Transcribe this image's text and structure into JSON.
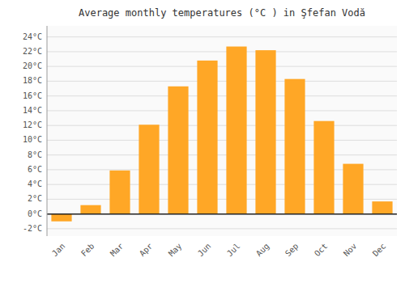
{
  "chart_data": {
    "type": "bar",
    "title": "Average monthly temperatures (°C ) in Şfefan Vodă",
    "categories": [
      "Jan",
      "Feb",
      "Mar",
      "Apr",
      "May",
      "Jun",
      "Jul",
      "Aug",
      "Sep",
      "Oct",
      "Nov",
      "Dec"
    ],
    "values": [
      -1.0,
      1.2,
      5.9,
      12.1,
      17.3,
      20.8,
      22.7,
      22.2,
      18.3,
      12.6,
      6.8,
      1.7
    ],
    "color": "#FFA726",
    "ylim": [
      -3,
      25.5
    ],
    "yticks": [
      {
        "value": -2,
        "label": "-2°C"
      },
      {
        "value": 0,
        "label": "0°C"
      },
      {
        "value": 2,
        "label": "2°C"
      },
      {
        "value": 4,
        "label": "4°C"
      },
      {
        "value": 6,
        "label": "6°C"
      },
      {
        "value": 8,
        "label": "8°C"
      },
      {
        "value": 10,
        "label": "10°C"
      },
      {
        "value": 12,
        "label": "12°C"
      },
      {
        "value": 14,
        "label": "14°C"
      },
      {
        "value": 16,
        "label": "16°C"
      },
      {
        "value": 18,
        "label": "18°C"
      },
      {
        "value": 20,
        "label": "20°C"
      },
      {
        "value": 22,
        "label": "22°C"
      },
      {
        "value": 24,
        "label": "24°C"
      }
    ],
    "grid": true
  }
}
